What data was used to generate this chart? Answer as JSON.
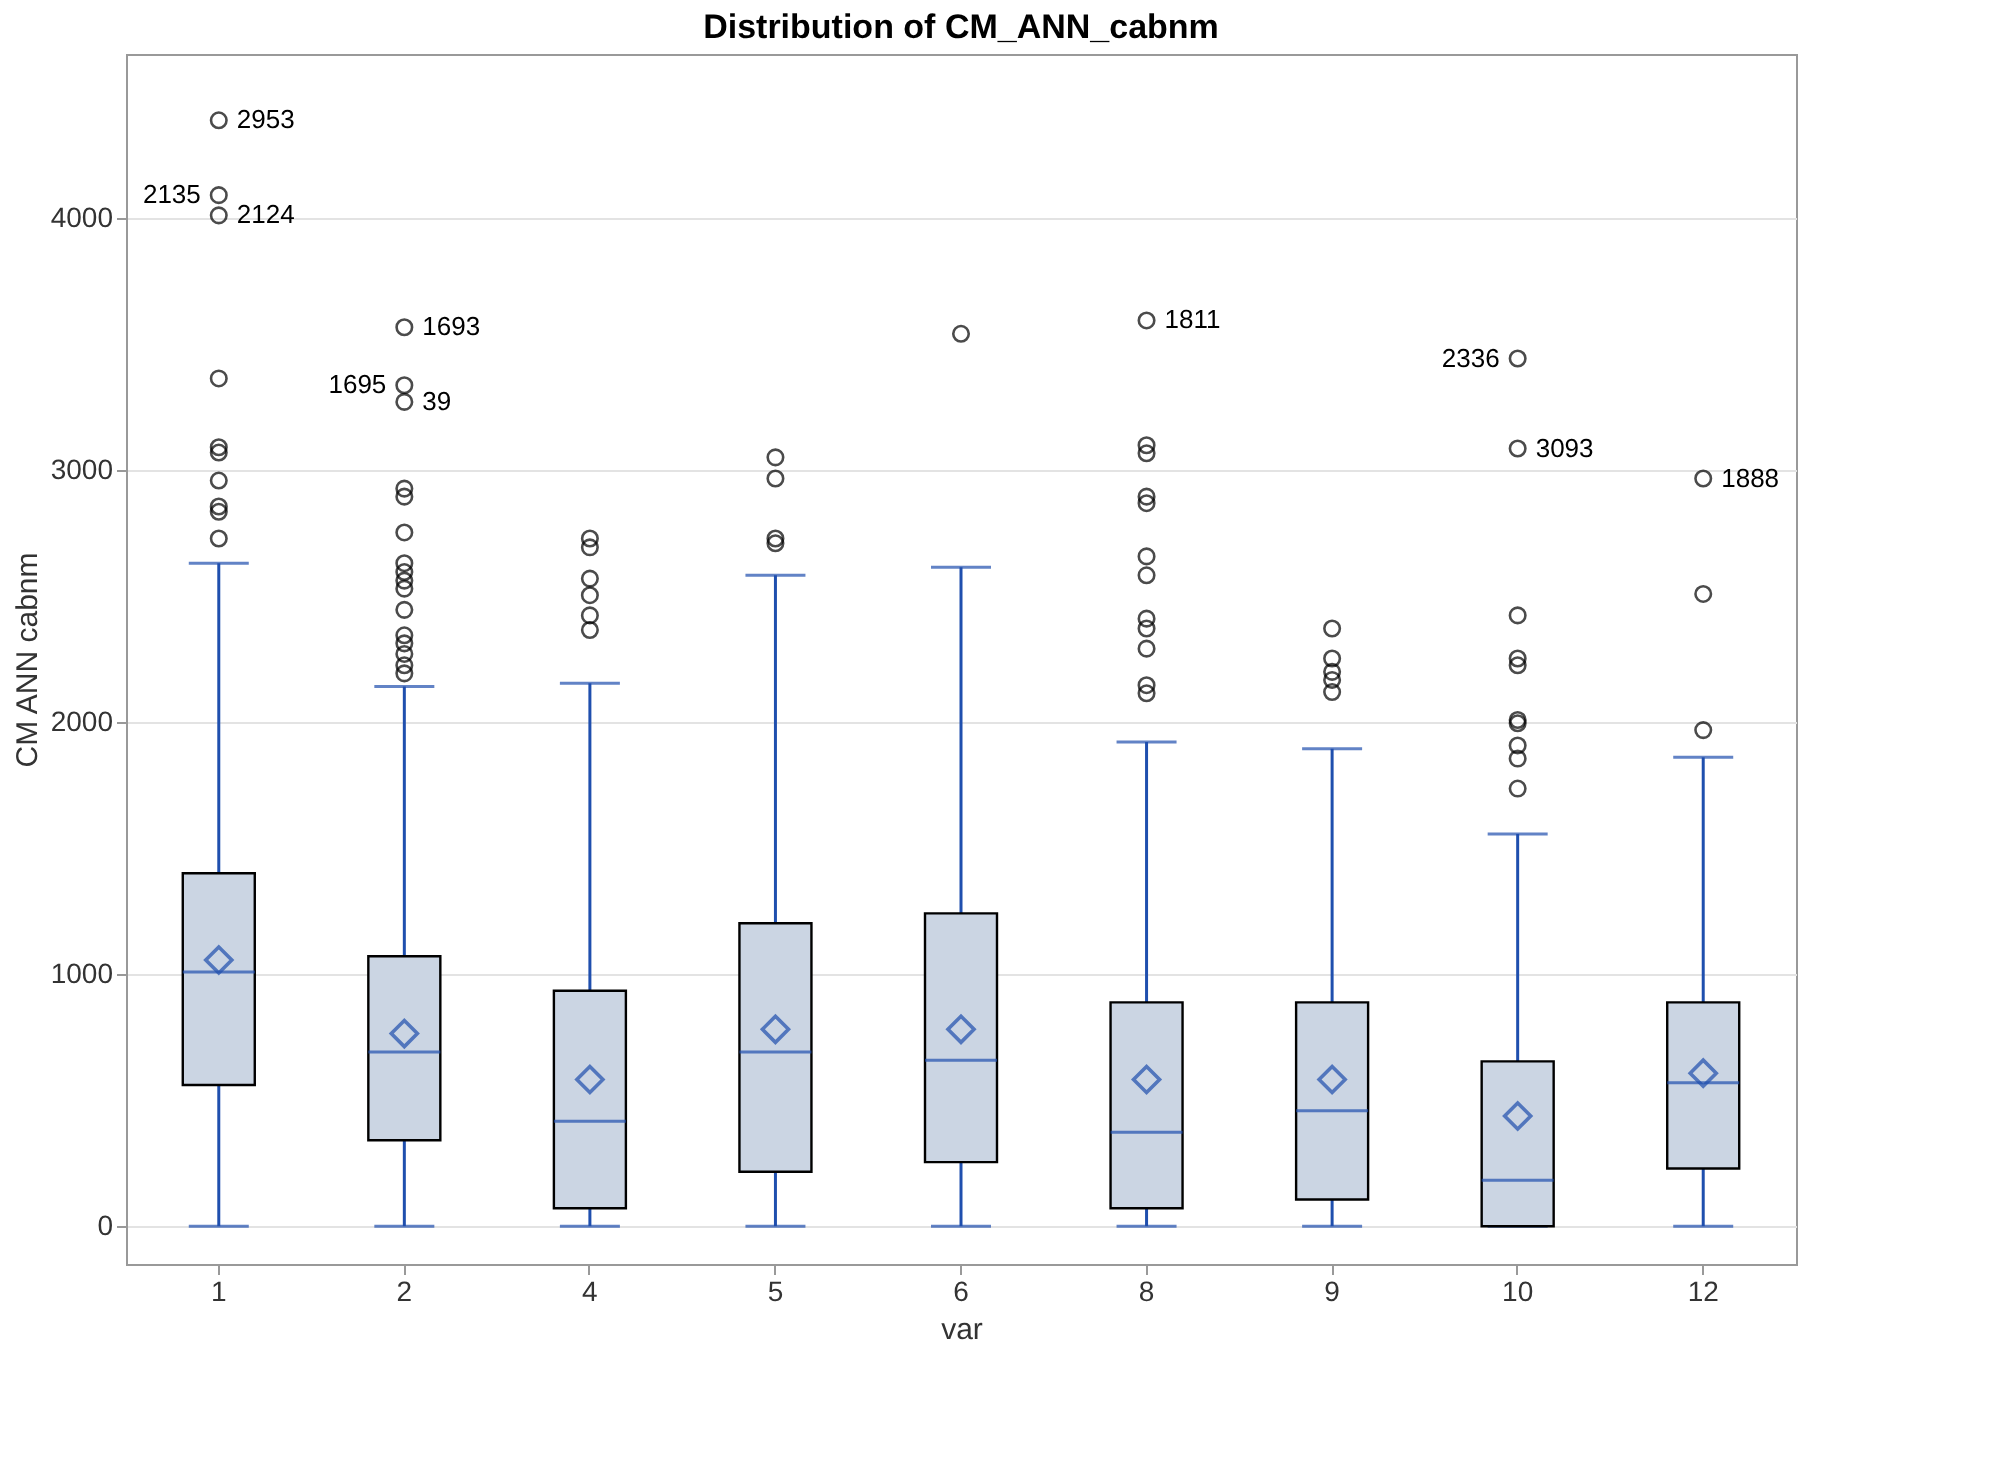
{
  "chart_data": {
    "type": "box",
    "title": "Distribution of CM_ANN_cabnm",
    "xlabel": "var",
    "ylabel": "CM ANN cabnm",
    "categories": [
      "1",
      "2",
      "4",
      "5",
      "6",
      "8",
      "9",
      "10",
      "12"
    ],
    "ylim": [
      -150,
      4650
    ],
    "yticks": [
      0,
      {
        "value": 1000,
        "label": "1000"
      },
      {
        "value": 2000,
        "label": "2000"
      },
      {
        "value": 3000,
        "label": "3000"
      },
      {
        "value": 4000,
        "label": "4000"
      }
    ],
    "grid": "y",
    "series": [
      {
        "color": "#cbd5e3",
        "boxes": [
          {
            "low": 0,
            "q1": 560,
            "median": 1008,
            "q3": 1400,
            "high": 2630,
            "mean": 1056
          },
          {
            "low": 0,
            "q1": 341,
            "median": 691,
            "q3": 1071,
            "high": 2141,
            "mean": 764
          },
          {
            "low": 0,
            "q1": 71,
            "median": 416,
            "q3": 934,
            "high": 2154,
            "mean": 582
          },
          {
            "low": 0,
            "q1": 216,
            "median": 691,
            "q3": 1202,
            "high": 2582,
            "mean": 781
          },
          {
            "low": 0,
            "q1": 254,
            "median": 658,
            "q3": 1241,
            "high": 2614,
            "mean": 781
          },
          {
            "low": 0,
            "q1": 71,
            "median": 373,
            "q3": 888,
            "high": 1921,
            "mean": 582
          },
          {
            "low": 0,
            "q1": 106,
            "median": 458,
            "q3": 888,
            "high": 1894,
            "mean": 582
          },
          {
            "low": 0,
            "q1": 0,
            "median": 182,
            "q3": 654,
            "high": 1556,
            "mean": 437
          },
          {
            "low": 0,
            "q1": 229,
            "median": 569,
            "q3": 888,
            "high": 1860,
            "mean": 607
          }
        ]
      },
      {
        "type": "scatter",
        "color": "#000000",
        "marker": "circle",
        "x": [
          "1",
          "1",
          "1",
          "1",
          "1",
          "1",
          "1",
          "1",
          "1",
          "1",
          "2",
          "2",
          "2",
          "2",
          "2",
          "2",
          "2",
          "2",
          "2",
          "2",
          "2",
          "2",
          "2",
          "2",
          "2",
          "2",
          "4",
          "4",
          "4",
          "4",
          "4",
          "4",
          "5",
          "5",
          "5",
          "5",
          "6",
          "8",
          "8",
          "8",
          "8",
          "8",
          "8",
          "8",
          "8",
          "8",
          "8",
          "8",
          "8",
          "9",
          "9",
          "9",
          "9",
          "9",
          "10",
          "10",
          "10",
          "10",
          "10",
          "10",
          "10",
          "10",
          "10",
          "10",
          "12",
          "12",
          "12"
        ],
        "values": [
          4387,
          4090,
          4010,
          3363,
          3090,
          3069,
          2958,
          2855,
          2834,
          2728,
          3566,
          3336,
          3270,
          2926,
          2894,
          2752,
          2630,
          2595,
          2561,
          2529,
          2445,
          2344,
          2312,
          2270,
          2225,
          2193,
          2728,
          2693,
          2569,
          2503,
          2423,
          2365,
          3050,
          2966,
          2728,
          2709,
          3540,
          3593,
          3098,
          3066,
          2894,
          2868,
          2657,
          2582,
          2410,
          2371,
          2291,
          2146,
          2114,
          2371,
          2252,
          2199,
          2167,
          2119,
          3442,
          3085,
          2423,
          2252,
          2225,
          2008,
          1995,
          1907,
          1855,
          1736,
          2966,
          2508,
          1968
        ]
      }
    ],
    "annotations": [
      {
        "text": "2953",
        "x": "1",
        "y": 4387
      },
      {
        "text": "2135",
        "x": "1",
        "y": 4090
      },
      {
        "text": "2124",
        "x": "1",
        "y": 4010
      },
      {
        "text": "1693",
        "x": "2",
        "y": 3566
      },
      {
        "text": "1695",
        "x": "2",
        "y": 3336
      },
      {
        "text": "39",
        "x": "2",
        "y": 3270
      },
      {
        "text": "1811",
        "x": "8",
        "y": 3593
      },
      {
        "text": "3093",
        "x": "10",
        "y": 3085
      },
      {
        "text": "2336",
        "x": "10",
        "y": 3442
      },
      {
        "text": "1888",
        "x": "12",
        "y": 2966
      }
    ]
  }
}
